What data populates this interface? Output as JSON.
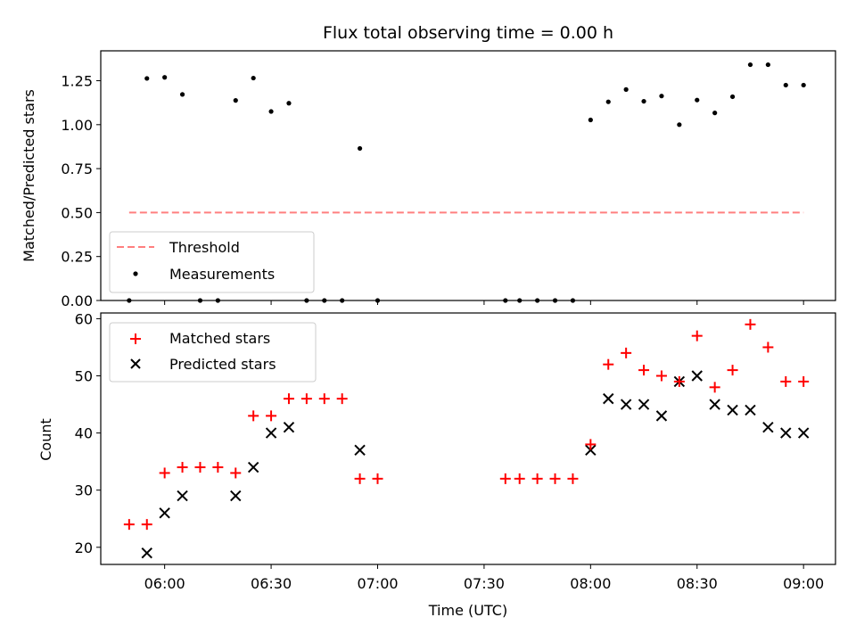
{
  "chart_data": [
    {
      "type": "scatter",
      "title": "Flux total observing time = 0.00 h",
      "ylabel": "Matched/Predicted stars",
      "xlabel": "",
      "xlim": [
        "05:42",
        "09:09"
      ],
      "ylim": [
        0,
        1.42
      ],
      "yticks": [
        0.0,
        0.25,
        0.5,
        0.75,
        1.0,
        1.25
      ],
      "ytick_labels": [
        "0.00",
        "0.25",
        "0.50",
        "0.75",
        "1.00",
        "1.25"
      ],
      "legend": {
        "placement": "lower-left",
        "entries": [
          "Threshold",
          "Measurements"
        ]
      },
      "threshold": {
        "name": "Threshold",
        "value": 0.5,
        "x_start": "05:50",
        "x_end": "09:00",
        "color": "#ff7f7f",
        "style": "dashed"
      },
      "series": [
        {
          "name": "Measurements",
          "color": "#000000",
          "marker": "dot",
          "points": [
            {
              "x": "05:50",
              "y": 0.0
            },
            {
              "x": "05:55",
              "y": 1.263
            },
            {
              "x": "06:00",
              "y": 1.269
            },
            {
              "x": "06:05",
              "y": 1.172
            },
            {
              "x": "06:10",
              "y": 0.0
            },
            {
              "x": "06:15",
              "y": 0.0
            },
            {
              "x": "06:20",
              "y": 1.138
            },
            {
              "x": "06:25",
              "y": 1.265
            },
            {
              "x": "06:30",
              "y": 1.075
            },
            {
              "x": "06:35",
              "y": 1.122
            },
            {
              "x": "06:40",
              "y": 0.0
            },
            {
              "x": "06:45",
              "y": 0.0
            },
            {
              "x": "06:50",
              "y": 0.0
            },
            {
              "x": "06:55",
              "y": 0.865
            },
            {
              "x": "07:00",
              "y": 0.0
            },
            {
              "x": "07:36",
              "y": 0.0
            },
            {
              "x": "07:40",
              "y": 0.0
            },
            {
              "x": "07:45",
              "y": 0.0
            },
            {
              "x": "07:50",
              "y": 0.0
            },
            {
              "x": "07:55",
              "y": 0.0
            },
            {
              "x": "08:00",
              "y": 1.027
            },
            {
              "x": "08:05",
              "y": 1.13
            },
            {
              "x": "08:10",
              "y": 1.2
            },
            {
              "x": "08:15",
              "y": 1.133
            },
            {
              "x": "08:20",
              "y": 1.163
            },
            {
              "x": "08:25",
              "y": 1.0
            },
            {
              "x": "08:30",
              "y": 1.14
            },
            {
              "x": "08:35",
              "y": 1.067
            },
            {
              "x": "08:40",
              "y": 1.159
            },
            {
              "x": "08:45",
              "y": 1.341
            },
            {
              "x": "08:50",
              "y": 1.341
            },
            {
              "x": "08:55",
              "y": 1.225
            },
            {
              "x": "09:00",
              "y": 1.225
            }
          ]
        }
      ]
    },
    {
      "type": "scatter",
      "title": "",
      "ylabel": "Count",
      "xlabel": "Time (UTC)",
      "xlim": [
        "05:42",
        "09:09"
      ],
      "ylim": [
        17,
        61
      ],
      "yticks": [
        20,
        30,
        40,
        50,
        60
      ],
      "ytick_labels": [
        "20",
        "30",
        "40",
        "50",
        "60"
      ],
      "xticks": [
        "06:00",
        "06:30",
        "07:00",
        "07:30",
        "08:00",
        "08:30",
        "09:00"
      ],
      "xtick_labels": [
        "06:00",
        "06:30",
        "07:00",
        "07:30",
        "08:00",
        "08:30",
        "09:00"
      ],
      "legend": {
        "placement": "upper-left",
        "entries": [
          "Matched stars",
          "Predicted stars"
        ]
      },
      "series": [
        {
          "name": "Matched stars",
          "color": "#ff0000",
          "marker": "plus",
          "points": [
            {
              "x": "05:50",
              "y": 24
            },
            {
              "x": "05:55",
              "y": 24
            },
            {
              "x": "06:00",
              "y": 33
            },
            {
              "x": "06:05",
              "y": 34
            },
            {
              "x": "06:10",
              "y": 34
            },
            {
              "x": "06:15",
              "y": 34
            },
            {
              "x": "06:20",
              "y": 33
            },
            {
              "x": "06:25",
              "y": 43
            },
            {
              "x": "06:30",
              "y": 43
            },
            {
              "x": "06:35",
              "y": 46
            },
            {
              "x": "06:40",
              "y": 46
            },
            {
              "x": "06:45",
              "y": 46
            },
            {
              "x": "06:50",
              "y": 46
            },
            {
              "x": "06:55",
              "y": 32
            },
            {
              "x": "07:00",
              "y": 32
            },
            {
              "x": "07:36",
              "y": 32
            },
            {
              "x": "07:40",
              "y": 32
            },
            {
              "x": "07:45",
              "y": 32
            },
            {
              "x": "07:50",
              "y": 32
            },
            {
              "x": "07:55",
              "y": 32
            },
            {
              "x": "08:00",
              "y": 38
            },
            {
              "x": "08:05",
              "y": 52
            },
            {
              "x": "08:10",
              "y": 54
            },
            {
              "x": "08:15",
              "y": 51
            },
            {
              "x": "08:20",
              "y": 50
            },
            {
              "x": "08:25",
              "y": 49
            },
            {
              "x": "08:30",
              "y": 57
            },
            {
              "x": "08:35",
              "y": 48
            },
            {
              "x": "08:40",
              "y": 51
            },
            {
              "x": "08:45",
              "y": 59
            },
            {
              "x": "08:50",
              "y": 55
            },
            {
              "x": "08:55",
              "y": 49
            },
            {
              "x": "09:00",
              "y": 49
            }
          ]
        },
        {
          "name": "Predicted stars",
          "color": "#000000",
          "marker": "x",
          "points": [
            {
              "x": "05:55",
              "y": 19
            },
            {
              "x": "06:00",
              "y": 26
            },
            {
              "x": "06:05",
              "y": 29
            },
            {
              "x": "06:20",
              "y": 29
            },
            {
              "x": "06:25",
              "y": 34
            },
            {
              "x": "06:30",
              "y": 40
            },
            {
              "x": "06:35",
              "y": 41
            },
            {
              "x": "06:55",
              "y": 37
            },
            {
              "x": "08:00",
              "y": 37
            },
            {
              "x": "08:05",
              "y": 46
            },
            {
              "x": "08:10",
              "y": 45
            },
            {
              "x": "08:15",
              "y": 45
            },
            {
              "x": "08:20",
              "y": 43
            },
            {
              "x": "08:25",
              "y": 49
            },
            {
              "x": "08:30",
              "y": 50
            },
            {
              "x": "08:35",
              "y": 45
            },
            {
              "x": "08:40",
              "y": 44
            },
            {
              "x": "08:45",
              "y": 44
            },
            {
              "x": "08:50",
              "y": 41
            },
            {
              "x": "08:55",
              "y": 40
            },
            {
              "x": "09:00",
              "y": 40
            }
          ]
        }
      ]
    }
  ]
}
